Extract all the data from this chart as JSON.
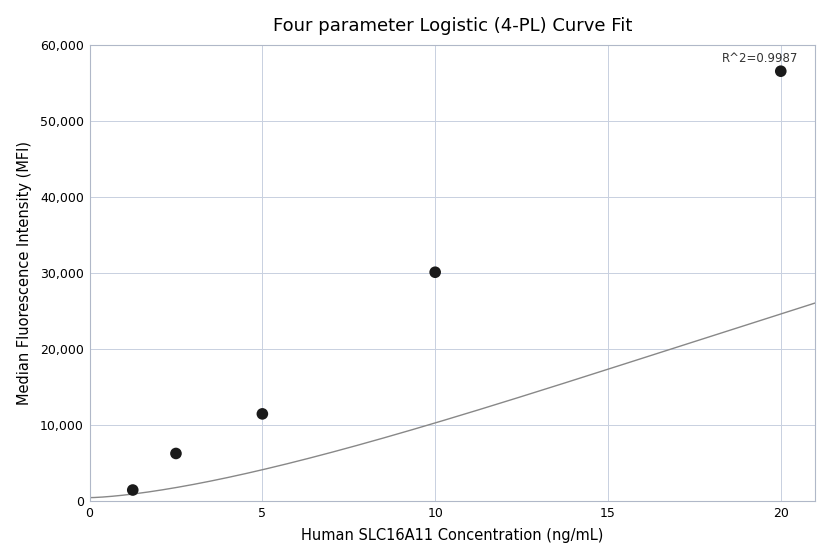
{
  "title": "Four parameter Logistic (4-PL) Curve Fit",
  "xlabel": "Human SLC16A11 Concentration (ng/mL)",
  "ylabel": "Median Fluorescence Intensity (MFI)",
  "scatter_x": [
    1.25,
    2.5,
    5.0,
    10.0,
    20.0
  ],
  "scatter_y": [
    1500,
    6300,
    11500,
    30100,
    56500
  ],
  "xlim": [
    0,
    21
  ],
  "ylim": [
    0,
    60000
  ],
  "xticks": [
    0,
    5,
    10,
    15,
    20
  ],
  "yticks": [
    0,
    10000,
    20000,
    30000,
    40000,
    50000,
    60000
  ],
  "ytick_labels": [
    "0",
    "10,000",
    "20,000",
    "30,000",
    "40,000",
    "50,000",
    "60,000"
  ],
  "r2_text": "R^2=0.9987",
  "r2_x": 20.5,
  "r2_y": 59000,
  "dot_color": "#1a1a1a",
  "dot_size": 70,
  "line_color": "#888888",
  "background_color": "#ffffff",
  "grid_color": "#c8d0e0",
  "title_fontsize": 13,
  "label_fontsize": 10.5,
  "annotation_fontsize": 8.5,
  "tick_labelsize": 9
}
